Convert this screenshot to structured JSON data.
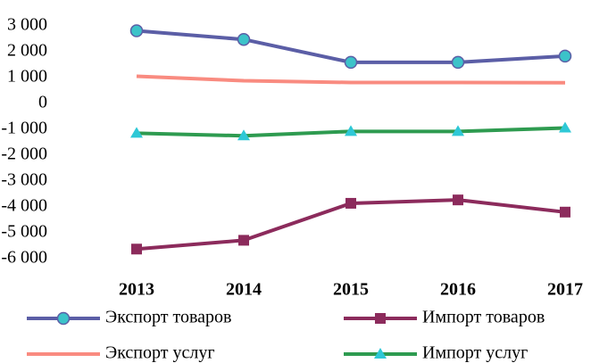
{
  "chart_data": {
    "type": "line",
    "categories": [
      "2013",
      "2014",
      "2015",
      "2016",
      "2017"
    ],
    "series": [
      {
        "name": "Экспорт товаров",
        "color": "#5b5ea6",
        "marker": "circle",
        "marker_color": "#3cc3c9",
        "values": [
          2810,
          2475,
          1590,
          1590,
          1830
        ]
      },
      {
        "name": "Импорт товаров",
        "color": "#8c2b5c",
        "marker": "square",
        "marker_color": "#8c2b5c",
        "values": [
          -5630,
          -5290,
          -3860,
          -3730,
          -4200
        ]
      },
      {
        "name": "Экспорт услуг",
        "color": "#f98b80",
        "marker": "none",
        "marker_color": "#f98b80",
        "values": [
          1050,
          880,
          810,
          810,
          800
        ]
      },
      {
        "name": "Импорт услуг",
        "color": "#2e9b50",
        "marker": "triangle",
        "marker_color": "#2ec8d6",
        "values": [
          -1150,
          -1250,
          -1080,
          -1080,
          -950
        ]
      }
    ],
    "ylim": [
      -6000,
      3000
    ],
    "yticks": [
      {
        "value": 3000,
        "label": "3 000"
      },
      {
        "value": 2000,
        "label": "2 000"
      },
      {
        "value": 1000,
        "label": "1 000"
      },
      0,
      {
        "value": -1000,
        "label": "-1 000"
      },
      {
        "value": -2000,
        "label": "-2 000"
      },
      {
        "value": -3000,
        "label": "-3 000"
      },
      {
        "value": -4000,
        "label": "-4 000"
      },
      {
        "value": -5000,
        "label": "-5 000"
      },
      {
        "value": -6000,
        "label": "-6 000"
      }
    ],
    "grid": false,
    "legend": "bottom"
  }
}
